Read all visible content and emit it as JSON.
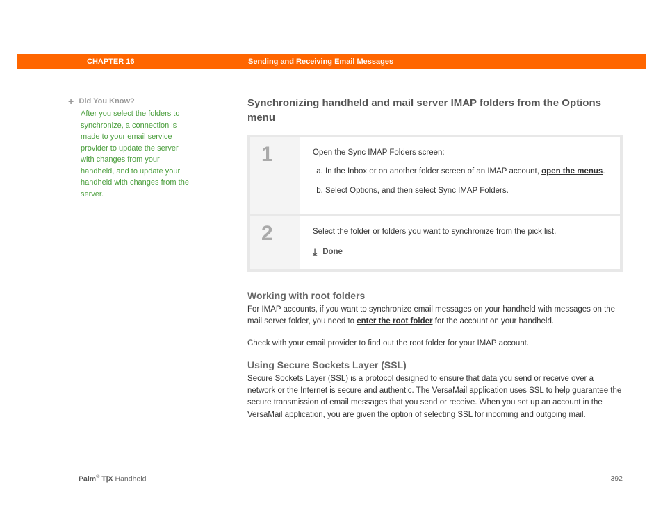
{
  "header": {
    "chapter": "CHAPTER 16",
    "title": "Sending and Receiving Email Messages",
    "bg_color": "#ff6600"
  },
  "sidebar": {
    "label": "Did You Know?",
    "text": "After you select the folders to synchronize, a connection is made to your email service provider to update the server with changes from your handheld, and to update your handheld with changes from the server.",
    "text_color": "#4a9e3c"
  },
  "main": {
    "title": "Synchronizing handheld and mail server IMAP folders from the Options menu",
    "steps": [
      {
        "num": "1",
        "intro": "Open the Sync IMAP Folders screen:",
        "sub_a_prefix": "In the Inbox or on another folder screen of an IMAP account, ",
        "sub_a_link": "open the menus",
        "sub_a_suffix": ".",
        "sub_b": "Select Options, and then select Sync IMAP Folders."
      },
      {
        "num": "2",
        "text": "Select the folder or folders you want to synchronize from the pick list.",
        "done": "Done"
      }
    ],
    "section2": {
      "title": "Working with root folders",
      "p1_prefix": "For IMAP accounts, if you want to synchronize email messages on your handheld with messages on the mail server folder, you need to ",
      "p1_link": "enter the root folder",
      "p1_suffix": " for the account on your handheld.",
      "p2": "Check with your email provider to find out the root folder for your IMAP account."
    },
    "section3": {
      "title": "Using Secure Sockets Layer (SSL)",
      "p1": "Secure Sockets Layer (SSL) is a protocol designed to ensure that data you send or receive over a network or the Internet is secure and authentic. The VersaMail application uses SSL to help guarantee the secure transmission of email messages that you send or receive. When you set up an account in the VersaMail application, you are given the option of selecting SSL for incoming and outgoing mail."
    }
  },
  "footer": {
    "product_bold": "Palm",
    "product_sep": " T|X",
    "product_rest": " Handheld",
    "page": "392"
  }
}
